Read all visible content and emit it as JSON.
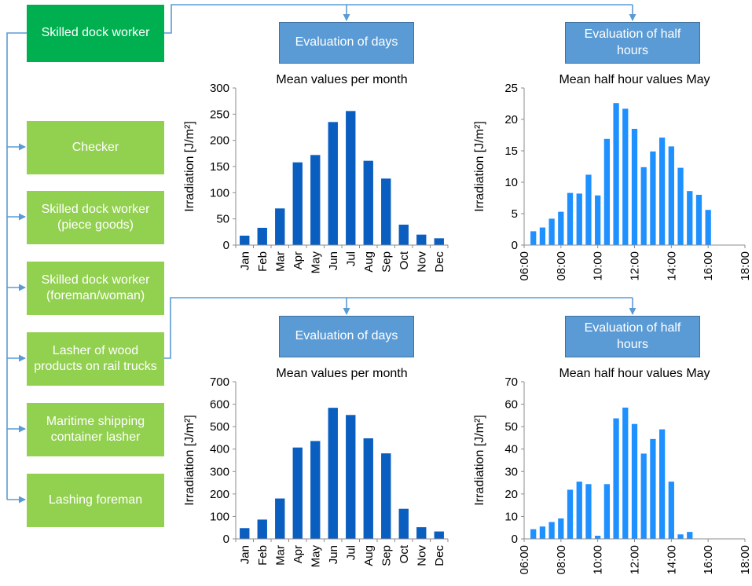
{
  "roles": {
    "main": "Skilled dock worker",
    "checker": "Checker",
    "piece_goods": "Skilled dock worker (piece goods)",
    "foreman": "Skilled dock worker (foreman/woman)",
    "lasher_wood": "Lasher of wood products on rail trucks",
    "container_lasher": "Maritime shipping container lasher",
    "lashing_foreman": "Lashing foreman"
  },
  "evaluations": {
    "days_top": "Evaluation of days",
    "half_hours_top": "Evaluation of half hours",
    "days_bottom": "Evaluation of days",
    "half_hours_bottom": "Evaluation of half hours"
  },
  "colors": {
    "dark_bar": "#0a5ec0",
    "light_bar": "#1e90ff",
    "connector": "#5b9bd5",
    "role_main": "#00b050",
    "role": "#92d050",
    "eval_box": "#5b9bd5"
  },
  "chart_data": [
    {
      "type": "bar",
      "title": "Mean values per month",
      "ylabel": "Irradiation [J/m²]",
      "xlabel": "",
      "categories": [
        "Jan",
        "Feb",
        "Mar",
        "Apr",
        "May",
        "Jun",
        "Jul",
        "Aug",
        "Sep",
        "Oct",
        "Nov",
        "Dec"
      ],
      "values": [
        18,
        33,
        70,
        158,
        172,
        235,
        256,
        161,
        127,
        39,
        20,
        13
      ],
      "ylim": [
        0,
        300
      ],
      "yticks": [
        "0",
        "50",
        "100",
        "150",
        "200",
        "250",
        "300"
      ],
      "grid": false
    },
    {
      "type": "bar",
      "title": "Mean half hour values May",
      "ylabel": "Irradiation [J/m²]",
      "xlabel": "",
      "xlim": [
        6,
        18
      ],
      "x": [
        6.5,
        7,
        7.5,
        8,
        8.5,
        9,
        9.5,
        10,
        10.5,
        11,
        11.5,
        12,
        12.5,
        13,
        13.5,
        14,
        14.5,
        15,
        15.5,
        16
      ],
      "values": [
        2.2,
        2.8,
        4.2,
        5.3,
        8.3,
        8.2,
        11.2,
        7.9,
        16.9,
        22.6,
        21.7,
        18.5,
        12.4,
        14.9,
        17.1,
        15.7,
        12.3,
        8.6,
        8.0,
        5.6
      ],
      "ylim": [
        0,
        25
      ],
      "yticks": [
        "0",
        "5",
        "10",
        "15",
        "20",
        "25"
      ],
      "xticks": [
        "06:00",
        "08:00",
        "10:00",
        "12:00",
        "14:00",
        "16:00",
        "18:00"
      ],
      "grid": false
    },
    {
      "type": "bar",
      "title": "Mean values per month",
      "ylabel": "Irradiation [J/m²]",
      "xlabel": "",
      "categories": [
        "Jan",
        "Feb",
        "Mar",
        "Apr",
        "May",
        "Jun",
        "Jul",
        "Aug",
        "Sep",
        "Oct",
        "Nov",
        "Dec"
      ],
      "values": [
        48,
        86,
        180,
        407,
        436,
        584,
        552,
        448,
        381,
        134,
        52,
        33
      ],
      "ylim": [
        0,
        700
      ],
      "yticks": [
        "0",
        "100",
        "200",
        "300",
        "400",
        "500",
        "600",
        "700"
      ],
      "grid": false
    },
    {
      "type": "bar",
      "title": "Mean half hour values May",
      "ylabel": "Irradiation [J/m²]",
      "xlabel": "",
      "xlim": [
        6,
        18
      ],
      "x": [
        6.5,
        7,
        7.5,
        8,
        8.5,
        9,
        9.5,
        10,
        10.5,
        11,
        11.5,
        12,
        12.5,
        13,
        13.5,
        14,
        14.5,
        15
      ],
      "values": [
        4.3,
        5.5,
        7.5,
        9.1,
        21.9,
        25.5,
        24.4,
        1.4,
        24.4,
        53.7,
        58.5,
        51.2,
        38.0,
        44.5,
        48.8,
        25.5,
        2.0,
        3.1
      ],
      "ylim": [
        0,
        70
      ],
      "yticks": [
        "0",
        "10",
        "20",
        "30",
        "40",
        "50",
        "60",
        "70"
      ],
      "xticks": [
        "06:00",
        "08:00",
        "10:00",
        "12:00",
        "14:00",
        "16:00",
        "18:00"
      ],
      "grid": false
    }
  ]
}
